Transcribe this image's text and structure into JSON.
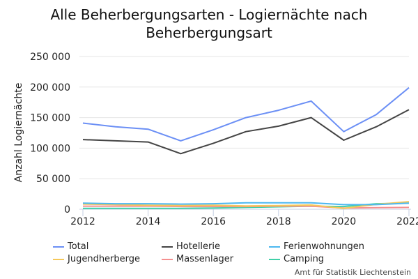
{
  "chart_data": {
    "type": "line",
    "title": "Alle Beherbergungsarten - Logiernächte nach Beherbergungsart",
    "xlabel": "",
    "ylabel": "Anzahl Logiernächte",
    "x": [
      2012,
      2013,
      2014,
      2015,
      2016,
      2017,
      2018,
      2019,
      2020,
      2021,
      2022
    ],
    "x_ticks": [
      "2012",
      "2014",
      "2016",
      "2018",
      "2020",
      "2022"
    ],
    "y_ticks": [
      "0",
      "50 000",
      "100 000",
      "150 000",
      "200 000",
      "250 000"
    ],
    "ylim": [
      0,
      250000
    ],
    "grid": true,
    "legend_position": "bottom",
    "series": [
      {
        "name": "Total",
        "color": "#6b8ff5",
        "values": [
          141000,
          135000,
          131000,
          112000,
          130000,
          150000,
          162000,
          177000,
          127000,
          155000,
          199000
        ]
      },
      {
        "name": "Hotellerie",
        "color": "#444444",
        "values": [
          114000,
          112000,
          110000,
          91000,
          108000,
          127000,
          136000,
          150000,
          113000,
          135000,
          163000
        ]
      },
      {
        "name": "Ferienwohnungen",
        "color": "#4cb8f0",
        "values": [
          10000,
          9000,
          9000,
          8500,
          9000,
          10500,
          10500,
          10500,
          7500,
          7500,
          10000
        ]
      },
      {
        "name": "Jugendherberge",
        "color": "#f5c85a",
        "values": [
          8500,
          7500,
          6500,
          6000,
          6500,
          5500,
          6000,
          7000,
          1500,
          8000,
          12500
        ]
      },
      {
        "name": "Massenlager",
        "color": "#f59090",
        "values": [
          5000,
          5000,
          5000,
          4500,
          4500,
          4500,
          5000,
          5000,
          2000,
          2500,
          3000
        ]
      },
      {
        "name": "Camping",
        "color": "#40d0a8",
        "values": [
          1500,
          1500,
          1500,
          1500,
          2000,
          3000,
          4000,
          5000,
          4500,
          9000,
          10000
        ]
      }
    ]
  },
  "credit": "Amt für Statistik Liechtenstein"
}
